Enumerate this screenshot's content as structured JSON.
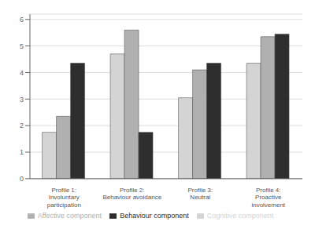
{
  "chart_data": {
    "type": "bar",
    "categories": [
      "Profile 1:\nInvoluntary\nparticipation",
      "Profile 2:\nBehaviour avoidance",
      "Profile 3:\nNeutral",
      "Profile 4:\nProactive\ninvolvement"
    ],
    "series": [
      {
        "name": "Cognitive component",
        "color": "#d4d4d4",
        "values": [
          1.75,
          4.7,
          3.05,
          4.35
        ]
      },
      {
        "name": "Affective component",
        "color": "#b0b0b0",
        "values": [
          2.35,
          5.6,
          4.1,
          5.35
        ]
      },
      {
        "name": "Behaviour component",
        "color": "#2e2e2e",
        "values": [
          4.35,
          1.75,
          4.35,
          5.45
        ]
      }
    ],
    "ylim": [
      0,
      6.2
    ],
    "yticks": [
      0,
      1,
      2,
      3,
      4,
      5,
      6
    ],
    "grid": true,
    "legend": "bottom"
  }
}
